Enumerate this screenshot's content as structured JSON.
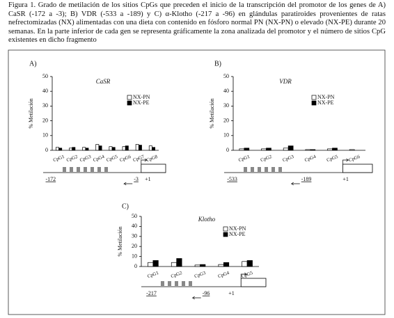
{
  "caption": "Figura 1. Grado de metilación de los sitios CpGs que preceden el inicio de la transcripción del promotor de los genes de A) CaSR (-172 a -3); B) VDR (-533 a -189) y C) α-Klotho (-217 a -96) en glándulas paratiroides provenientes de ratas nefrectomizadas (NX) alimentadas con una dieta con contenido en fósforo normal PN (NX-PN) o elevado (NX-PE) durante 20 semanas. En la parte inferior de cada gen se representa gráficamente la zona analizada del promotor y el número de sitios CpG existentes en dicho fragmento",
  "chart_data": [
    {
      "type": "bar",
      "panel": "A)",
      "title": "CaSR",
      "y_label": "% Metilación",
      "categories": [
        "CpG1",
        "CpG2",
        "CpG3",
        "CpG4",
        "CpG5",
        "CpG6",
        "CpG7",
        "CpG8"
      ],
      "series": [
        {
          "name": "NX-PN",
          "color": "#ffffff",
          "values": [
            2,
            1.5,
            2,
            4,
            2.5,
            2.5,
            4,
            3
          ]
        },
        {
          "name": "NX-PE",
          "color": "#000000",
          "values": [
            1.5,
            2,
            1.5,
            3,
            2,
            3,
            3.5,
            2
          ]
        }
      ],
      "ylim": [
        0,
        50
      ],
      "yticks": [
        0,
        10,
        20,
        30,
        40,
        50
      ],
      "promoter_labels": [
        "-172",
        "-3",
        "+1"
      ]
    },
    {
      "type": "bar",
      "panel": "B)",
      "title": "VDR",
      "y_label": "% Metilación",
      "categories": [
        "CpG1",
        "CpG2",
        "CpG3",
        "CpG4",
        "CpG5",
        "CpG6"
      ],
      "series": [
        {
          "name": "NX-PN",
          "color": "#ffffff",
          "values": [
            1,
            1,
            1.5,
            0.5,
            1,
            0.5
          ]
        },
        {
          "name": "NX-PE",
          "color": "#000000",
          "values": [
            1.5,
            1.5,
            3,
            0.5,
            1.5,
            0
          ]
        }
      ],
      "ylim": [
        0,
        50
      ],
      "yticks": [
        0,
        10,
        20,
        30,
        40,
        50
      ],
      "promoter_labels": [
        "-533",
        "-189",
        "+1"
      ]
    },
    {
      "type": "bar",
      "panel": "C)",
      "title": "Klotho",
      "y_label": "% Metilación",
      "categories": [
        "CpG1",
        "CpG2",
        "CpG3",
        "CpG4",
        "CpG5"
      ],
      "series": [
        {
          "name": "NX-PN",
          "color": "#ffffff",
          "values": [
            4,
            4,
            1.5,
            2,
            5
          ]
        },
        {
          "name": "NX-PE",
          "color": "#000000",
          "values": [
            6,
            8,
            2,
            4,
            6
          ]
        }
      ],
      "ylim": [
        0,
        50
      ],
      "yticks": [
        0,
        10,
        20,
        30,
        40,
        50
      ],
      "promoter_labels": [
        "-217",
        "-96",
        "+1"
      ]
    }
  ]
}
